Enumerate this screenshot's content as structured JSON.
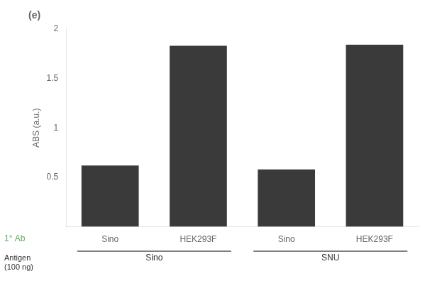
{
  "chart_data": {
    "type": "bar",
    "title": "(e)",
    "categories": [
      "Sino",
      "HEK293F",
      "Sino",
      "HEK293F"
    ],
    "values": [
      0.62,
      1.83,
      0.58,
      1.84
    ],
    "color": "#3a3a3a",
    "ylabel": "ABS (a.u.)",
    "ylim": [
      0,
      2.0
    ],
    "yticks": [
      0.5,
      1,
      1.5,
      2
    ],
    "grid": false,
    "annotations": [
      {
        "text": "Sino"
      },
      {
        "text": "SNU"
      },
      {
        "text": "1° Ab",
        "color": "#5aaa5a"
      },
      {
        "text": "Antigen\n(100 ng)"
      }
    ]
  }
}
